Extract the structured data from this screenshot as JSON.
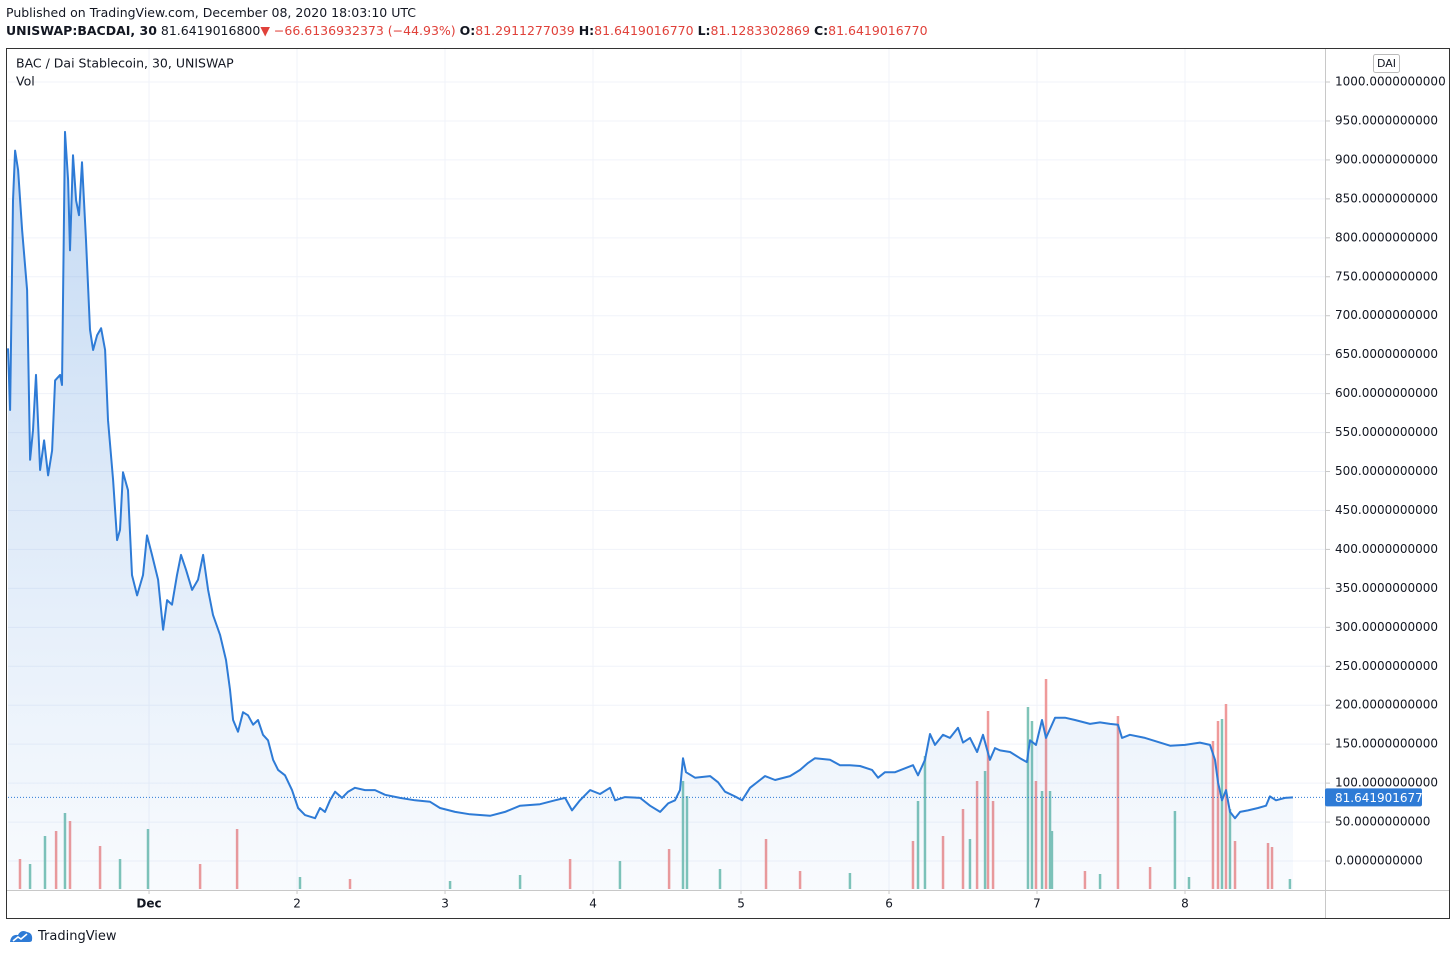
{
  "header": {
    "published": "Published on TradingView.com, December 08, 2020 18:03:10 UTC",
    "symbol": "UNISWAP:BACDAI, 30",
    "last": "81.6419016800",
    "arrow": "▼",
    "change": "−66.6136932373 (−44.93%)",
    "ohlc": [
      {
        "key": "O:",
        "value": "81.2911277039"
      },
      {
        "key": "H:",
        "value": "81.6419016770"
      },
      {
        "key": "L:",
        "value": "81.1283302869"
      },
      {
        "key": "C:",
        "value": "81.6419016770"
      }
    ]
  },
  "footer": {
    "brand": "TradingView"
  },
  "chart_data": {
    "type": "area",
    "title": "BAC / Dai Stablecoin, 30, UNISWAP",
    "volume_label": "Vol",
    "currency": "DAI",
    "last_label": "81.6419016770",
    "xlim": [
      0.047,
      8.946
    ],
    "xticks": [
      {
        "value": 1,
        "label": "Dec"
      },
      2,
      3,
      4,
      5,
      6,
      7,
      8
    ],
    "ylim": [
      -37.2,
      1041.1
    ],
    "yticks": [
      {
        "value": 0,
        "label": "0.0000000000"
      },
      {
        "value": 50,
        "label": "50.0000000000"
      },
      {
        "value": 100,
        "label": "100.0000000000"
      },
      {
        "value": 150,
        "label": "150.0000000000"
      },
      {
        "value": 200,
        "label": "200.0000000000"
      },
      {
        "value": 250,
        "label": "250.0000000000"
      },
      {
        "value": 300,
        "label": "300.0000000000"
      },
      {
        "value": 350,
        "label": "350.0000000000"
      },
      {
        "value": 400,
        "label": "400.0000000000"
      },
      {
        "value": 450,
        "label": "450.0000000000"
      },
      {
        "value": 500,
        "label": "500.0000000000"
      },
      {
        "value": 550,
        "label": "550.0000000000"
      },
      {
        "value": 600,
        "label": "600.0000000000"
      },
      {
        "value": 650,
        "label": "650.0000000000"
      },
      {
        "value": 700,
        "label": "700.0000000000"
      },
      {
        "value": 750,
        "label": "750.0000000000"
      },
      {
        "value": 800,
        "label": "800.0000000000"
      },
      {
        "value": 850,
        "label": "850.0000000000"
      },
      {
        "value": 900,
        "label": "900.0000000000"
      },
      {
        "value": 950,
        "label": "950.0000000000"
      },
      {
        "value": 1000,
        "label": "1000.0000000000"
      }
    ],
    "grid": true,
    "series": [
      {
        "color": "#2e7bd6",
        "x": [
          0.047,
          0.061,
          0.081,
          0.095,
          0.115,
          0.142,
          0.176,
          0.196,
          0.216,
          0.236,
          0.264,
          0.291,
          0.318,
          0.345,
          0.365,
          0.399,
          0.412,
          0.432,
          0.453,
          0.466,
          0.486,
          0.507,
          0.527,
          0.547,
          0.574,
          0.601,
          0.622,
          0.649,
          0.676,
          0.703,
          0.723,
          0.757,
          0.784,
          0.804,
          0.824,
          0.858,
          0.885,
          0.919,
          0.959,
          0.986,
          1.02,
          1.061,
          1.095,
          1.122,
          1.155,
          1.189,
          1.216,
          1.25,
          1.291,
          1.331,
          1.365,
          1.399,
          1.432,
          1.48,
          1.52,
          1.547,
          1.568,
          1.601,
          1.635,
          1.669,
          1.703,
          1.736,
          1.77,
          1.804,
          1.838,
          1.872,
          1.919,
          1.966,
          2.007,
          2.054,
          2.122,
          2.155,
          2.189,
          2.223,
          2.257,
          2.304,
          2.345,
          2.392,
          2.459,
          2.527,
          2.595,
          2.696,
          2.797,
          2.899,
          2.966,
          3.068,
          3.169,
          3.304,
          3.405,
          3.507,
          3.642,
          3.743,
          3.811,
          3.858,
          3.912,
          3.98,
          4.047,
          4.115,
          4.149,
          4.216,
          4.318,
          4.385,
          4.453,
          4.507,
          4.554,
          4.588,
          4.608,
          4.628,
          4.689,
          4.791,
          4.845,
          4.892,
          4.959,
          5.007,
          5.061,
          5.128,
          5.162,
          5.23,
          5.331,
          5.399,
          5.453,
          5.5,
          5.601,
          5.669,
          5.736,
          5.804,
          5.885,
          5.926,
          5.973,
          6.041,
          6.108,
          6.162,
          6.196,
          6.243,
          6.277,
          6.311,
          6.365,
          6.412,
          6.466,
          6.5,
          6.547,
          6.595,
          6.635,
          6.682,
          6.716,
          6.75,
          6.818,
          6.885,
          6.932,
          6.953,
          6.993,
          7.034,
          7.061,
          7.122,
          7.189,
          7.257,
          7.358,
          7.426,
          7.493,
          7.547,
          7.574,
          7.628,
          7.73,
          7.831,
          7.899,
          8.0,
          8.101,
          8.169,
          8.203,
          8.223,
          8.25,
          8.277,
          8.304,
          8.338,
          8.372,
          8.426,
          8.493,
          8.547,
          8.574,
          8.615,
          8.676,
          8.73
        ],
        "values": [
          658,
          579,
          848,
          912,
          887,
          810,
          733,
          515,
          553,
          624,
          502,
          540,
          495,
          527,
          617,
          624,
          611,
          936,
          874,
          784,
          906,
          848,
          829,
          897,
          797,
          682,
          656,
          675,
          684,
          656,
          566,
          489,
          412,
          425,
          499,
          476,
          367,
          341,
          367,
          418,
          393,
          361,
          297,
          335,
          329,
          367,
          393,
          374,
          348,
          361,
          393,
          348,
          316,
          290,
          258,
          220,
          181,
          166,
          191,
          187,
          175,
          181,
          162,
          155,
          130,
          117,
          110,
          91,
          68,
          59,
          55,
          68,
          63,
          78,
          89,
          81,
          89,
          94,
          91,
          91,
          85,
          81,
          78,
          76,
          68,
          63,
          60,
          58,
          63,
          71,
          73,
          78,
          81,
          65,
          78,
          91,
          86,
          94,
          78,
          82,
          81,
          71,
          63,
          74,
          78,
          91,
          132,
          114,
          107,
          109,
          101,
          89,
          83,
          78,
          94,
          104,
          109,
          104,
          109,
          117,
          126,
          132,
          130,
          123,
          123,
          122,
          117,
          107,
          114,
          114,
          119,
          123,
          110,
          130,
          163,
          149,
          162,
          158,
          171,
          152,
          158,
          140,
          162,
          130,
          145,
          142,
          140,
          132,
          127,
          155,
          149,
          181,
          158,
          184,
          184,
          181,
          176,
          178,
          176,
          175,
          158,
          162,
          158,
          152,
          148,
          149,
          152,
          149,
          130,
          101,
          78,
          91,
          63,
          55,
          63,
          65,
          68,
          71,
          83,
          78,
          81,
          81.641901677
        ]
      }
    ],
    "volume": {
      "vlim": [
        0,
        250
      ],
      "up_color": "#7fc4b8",
      "down_color": "#ef9a9a",
      "x": [
        0.128,
        0.196,
        0.297,
        0.372,
        0.432,
        0.466,
        0.669,
        0.804,
        0.993,
        1.345,
        1.595,
        2.02,
        2.358,
        3.034,
        3.507,
        3.845,
        4.182,
        4.514,
        4.608,
        4.635,
        4.858,
        5.169,
        5.399,
        5.736,
        6.162,
        6.196,
        6.243,
        6.365,
        6.5,
        6.547,
        6.595,
        6.649,
        6.669,
        6.703,
        6.939,
        6.966,
        6.993,
        7.034,
        7.061,
        7.088,
        7.101,
        7.324,
        7.426,
        7.547,
        7.764,
        7.932,
        8.027,
        8.189,
        8.223,
        8.25,
        8.277,
        8.304,
        8.338,
        8.561,
        8.588,
        8.709
      ],
      "values": [
        30,
        25,
        53,
        58,
        76,
        68,
        43,
        30,
        60,
        25,
        60,
        12,
        10,
        8,
        14,
        30,
        28,
        40,
        108,
        93,
        20,
        50,
        18,
        16,
        48,
        88,
        133,
        53,
        80,
        50,
        108,
        118,
        178,
        88,
        182,
        168,
        108,
        98,
        210,
        98,
        58,
        18,
        15,
        173,
        22,
        78,
        12,
        148,
        168,
        170,
        185,
        80,
        48,
        46,
        42,
        10
      ],
      "rising": [
        false,
        true,
        true,
        false,
        true,
        false,
        false,
        true,
        true,
        false,
        false,
        true,
        false,
        true,
        true,
        false,
        true,
        false,
        true,
        true,
        true,
        false,
        false,
        true,
        false,
        true,
        true,
        false,
        false,
        true,
        false,
        true,
        false,
        false,
        true,
        true,
        false,
        true,
        false,
        true,
        true,
        false,
        true,
        false,
        false,
        true,
        true,
        false,
        false,
        true,
        false,
        true,
        false,
        false,
        false,
        true
      ]
    }
  }
}
